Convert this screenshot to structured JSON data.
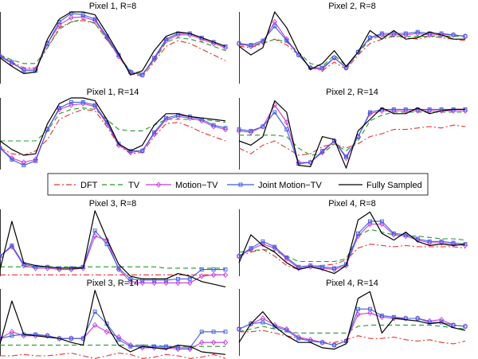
{
  "chart_data": {
    "type": "line",
    "x": [
      1,
      2,
      3,
      4,
      5,
      6,
      7,
      8,
      9,
      10,
      11,
      12,
      13,
      14,
      15,
      16,
      17,
      18,
      19,
      20
    ],
    "ylim": [
      0,
      1
    ],
    "legend": {
      "position": "center",
      "entries": [
        {
          "key": "dft",
          "label": "DFT",
          "color": "#e8332f",
          "style": "dashdot",
          "marker": "none"
        },
        {
          "key": "tv",
          "label": "TV",
          "color": "#1f9a26",
          "style": "dashed",
          "marker": "none"
        },
        {
          "key": "mtv",
          "label": "Motion−TV",
          "color": "#c63bd6",
          "style": "solid",
          "marker": "diamond"
        },
        {
          "key": "jmtv",
          "label": "Joint Motion−TV",
          "color": "#3c5be0",
          "style": "solid",
          "marker": "square"
        },
        {
          "key": "full",
          "label": "Fully Sampled",
          "color": "#000000",
          "style": "solid",
          "marker": "none"
        }
      ]
    },
    "panels": [
      {
        "id": "p1r8",
        "title": "Pixel 1, R=8",
        "series": {
          "dft": [
            0.4,
            0.3,
            0.22,
            0.22,
            0.5,
            0.78,
            0.86,
            0.88,
            0.84,
            0.62,
            0.38,
            0.14,
            0.1,
            0.3,
            0.52,
            0.6,
            0.56,
            0.48,
            0.4,
            0.32
          ],
          "tv": [
            0.4,
            0.33,
            0.28,
            0.28,
            0.5,
            0.76,
            0.86,
            0.9,
            0.84,
            0.62,
            0.38,
            0.18,
            0.14,
            0.32,
            0.58,
            0.64,
            0.62,
            0.58,
            0.52,
            0.46
          ],
          "mtv": [
            0.38,
            0.28,
            0.2,
            0.2,
            0.56,
            0.82,
            0.92,
            0.93,
            0.88,
            0.64,
            0.38,
            0.16,
            0.12,
            0.34,
            0.6,
            0.68,
            0.68,
            0.62,
            0.56,
            0.5
          ],
          "jmtv": [
            0.38,
            0.3,
            0.18,
            0.18,
            0.56,
            0.86,
            0.98,
            0.96,
            0.9,
            0.66,
            0.4,
            0.16,
            0.12,
            0.36,
            0.62,
            0.7,
            0.7,
            0.64,
            0.58,
            0.52
          ],
          "full": [
            0.36,
            0.24,
            0.14,
            0.16,
            0.62,
            0.9,
            1.0,
            1.0,
            0.96,
            0.7,
            0.42,
            0.12,
            0.18,
            0.46,
            0.66,
            0.72,
            0.7,
            0.64,
            0.58,
            0.52
          ]
        }
      },
      {
        "id": "p2r8",
        "title": "Pixel 2, R=8",
        "series": {
          "dft": [
            0.52,
            0.5,
            0.56,
            0.62,
            0.54,
            0.4,
            0.22,
            0.18,
            0.3,
            0.2,
            0.4,
            0.56,
            0.62,
            0.66,
            0.64,
            0.62,
            0.66,
            0.64,
            0.62,
            0.6
          ],
          "tv": [
            0.54,
            0.52,
            0.56,
            0.62,
            0.58,
            0.44,
            0.28,
            0.24,
            0.4,
            0.24,
            0.42,
            0.62,
            0.66,
            0.66,
            0.66,
            0.66,
            0.66,
            0.66,
            0.66,
            0.66
          ],
          "mtv": [
            0.56,
            0.52,
            0.58,
            0.86,
            0.62,
            0.4,
            0.22,
            0.2,
            0.36,
            0.22,
            0.44,
            0.64,
            0.68,
            0.68,
            0.68,
            0.7,
            0.68,
            0.68,
            0.68,
            0.66
          ],
          "jmtv": [
            0.56,
            0.54,
            0.6,
            0.8,
            0.6,
            0.4,
            0.22,
            0.22,
            0.36,
            0.22,
            0.44,
            0.64,
            0.7,
            0.7,
            0.7,
            0.72,
            0.7,
            0.7,
            0.68,
            0.66
          ],
          "full": [
            0.52,
            0.4,
            0.5,
            1.0,
            0.78,
            0.44,
            0.2,
            0.28,
            0.46,
            0.24,
            0.44,
            0.74,
            0.62,
            0.74,
            0.62,
            0.64,
            0.72,
            0.68,
            0.62,
            0.62
          ]
        }
      },
      {
        "id": "p1r14",
        "title": "Pixel 1, R=14",
        "series": {
          "dft": [
            0.3,
            0.22,
            0.2,
            0.26,
            0.42,
            0.7,
            0.78,
            0.84,
            0.82,
            0.6,
            0.34,
            0.22,
            0.24,
            0.46,
            0.64,
            0.66,
            0.6,
            0.52,
            0.46,
            0.4
          ],
          "tv": [
            0.4,
            0.4,
            0.4,
            0.4,
            0.54,
            0.78,
            0.84,
            0.86,
            0.84,
            0.7,
            0.56,
            0.54,
            0.54,
            0.62,
            0.7,
            0.7,
            0.7,
            0.7,
            0.68,
            0.66
          ],
          "mtv": [
            0.3,
            0.16,
            0.1,
            0.14,
            0.56,
            0.84,
            0.9,
            0.92,
            0.88,
            0.64,
            0.34,
            0.24,
            0.26,
            0.5,
            0.7,
            0.74,
            0.72,
            0.68,
            0.6,
            0.56
          ],
          "jmtv": [
            0.3,
            0.14,
            0.06,
            0.12,
            0.56,
            0.86,
            0.94,
            0.94,
            0.9,
            0.66,
            0.36,
            0.26,
            0.26,
            0.52,
            0.72,
            0.76,
            0.74,
            0.7,
            0.62,
            0.58
          ],
          "full": [
            0.4,
            0.28,
            0.2,
            0.22,
            0.64,
            0.92,
            1.0,
            1.0,
            0.96,
            0.7,
            0.36,
            0.26,
            0.34,
            0.62,
            0.78,
            0.78,
            0.74,
            0.72,
            0.7,
            0.68
          ]
        }
      },
      {
        "id": "p2r14",
        "title": "Pixel 2, R=14",
        "series": {
          "dft": [
            0.3,
            0.22,
            0.34,
            0.4,
            0.3,
            0.2,
            0.22,
            0.32,
            0.36,
            0.3,
            0.36,
            0.46,
            0.5,
            0.56,
            0.56,
            0.58,
            0.6,
            0.58,
            0.62,
            0.6
          ],
          "tv": [
            0.48,
            0.48,
            0.48,
            0.48,
            0.46,
            0.3,
            0.2,
            0.22,
            0.36,
            0.26,
            0.4,
            0.68,
            0.76,
            0.8,
            0.8,
            0.8,
            0.8,
            0.8,
            0.8,
            0.8
          ],
          "mtv": [
            0.54,
            0.52,
            0.6,
            0.9,
            0.66,
            0.1,
            0.1,
            0.24,
            0.4,
            0.16,
            0.46,
            0.78,
            0.82,
            0.82,
            0.82,
            0.82,
            0.82,
            0.82,
            0.82,
            0.82
          ],
          "jmtv": [
            0.56,
            0.54,
            0.6,
            0.8,
            0.56,
            0.08,
            0.1,
            0.26,
            0.4,
            0.18,
            0.46,
            0.8,
            0.84,
            0.84,
            0.84,
            0.84,
            0.84,
            0.84,
            0.84,
            0.84
          ],
          "full": [
            0.4,
            0.34,
            0.46,
            0.96,
            0.8,
            0.06,
            0.04,
            0.46,
            0.42,
            0.02,
            0.54,
            0.7,
            0.86,
            0.78,
            0.78,
            0.86,
            0.78,
            0.82,
            0.84,
            0.84
          ]
        }
      },
      {
        "id": "p3r8",
        "title": "Pixel 3, R=8",
        "series": {
          "dft": [
            0.02,
            0.02,
            0.02,
            0.02,
            0.02,
            0.02,
            0.02,
            0.02,
            0.02,
            0.02,
            0.02,
            0.02,
            0.02,
            0.02,
            0.02,
            0.02,
            0.02,
            0.02,
            0.02,
            0.02
          ],
          "tv": [
            0.14,
            0.14,
            0.14,
            0.14,
            0.14,
            0.14,
            0.14,
            0.14,
            0.14,
            0.14,
            0.14,
            0.14,
            0.14,
            0.14,
            0.12,
            0.12,
            0.12,
            0.12,
            0.12,
            0.12
          ],
          "mtv": [
            0.3,
            0.44,
            0.16,
            0.12,
            0.12,
            0.1,
            0.1,
            0.12,
            0.6,
            0.54,
            0.1,
            -0.08,
            -0.1,
            -0.1,
            -0.1,
            -0.1,
            -0.1,
            0.0,
            0.02,
            0.02
          ],
          "jmtv": [
            0.3,
            0.46,
            0.18,
            0.14,
            0.14,
            0.12,
            0.12,
            0.14,
            0.68,
            0.48,
            0.12,
            -0.04,
            -0.06,
            -0.06,
            -0.06,
            -0.04,
            -0.04,
            0.1,
            0.1,
            0.1
          ],
          "full": [
            0.1,
            0.82,
            0.2,
            0.16,
            0.14,
            0.12,
            0.12,
            0.12,
            0.98,
            0.56,
            0.18,
            0.0,
            -0.04,
            -0.04,
            -0.04,
            0.04,
            0.0,
            -0.08,
            -0.12,
            -0.16
          ]
        }
      },
      {
        "id": "p4r8",
        "title": "Pixel 4, R=8",
        "series": {
          "dft": [
            0.3,
            0.36,
            0.4,
            0.3,
            0.16,
            0.1,
            0.14,
            0.16,
            0.18,
            0.24,
            0.42,
            0.48,
            0.46,
            0.44,
            0.46,
            0.44,
            0.44,
            0.44,
            0.44,
            0.42
          ],
          "tv": [
            0.36,
            0.38,
            0.4,
            0.38,
            0.3,
            0.22,
            0.22,
            0.22,
            0.22,
            0.26,
            0.6,
            0.7,
            0.66,
            0.62,
            0.6,
            0.6,
            0.58,
            0.56,
            0.56,
            0.54
          ],
          "mtv": [
            0.3,
            0.4,
            0.48,
            0.42,
            0.26,
            0.12,
            0.14,
            0.12,
            0.1,
            0.16,
            0.6,
            0.78,
            0.78,
            0.62,
            0.6,
            0.54,
            0.5,
            0.5,
            0.48,
            0.46
          ],
          "jmtv": [
            0.3,
            0.42,
            0.52,
            0.44,
            0.28,
            0.14,
            0.16,
            0.14,
            0.12,
            0.18,
            0.64,
            0.82,
            0.82,
            0.64,
            0.62,
            0.56,
            0.52,
            0.52,
            0.5,
            0.48
          ],
          "full": [
            0.2,
            0.62,
            0.46,
            0.36,
            0.2,
            0.1,
            0.14,
            0.1,
            0.04,
            0.16,
            0.84,
            0.96,
            0.64,
            0.54,
            0.66,
            0.52,
            0.46,
            0.48,
            0.46,
            0.48
          ]
        }
      },
      {
        "id": "p3r14",
        "title": "Pixel 3, R=14",
        "series": {
          "dft": [
            0.0,
            0.0,
            0.02,
            0.0,
            0.0,
            0.02,
            0.04,
            0.0,
            -0.04,
            0.0,
            0.04,
            0.02,
            -0.04,
            -0.02,
            0.02,
            0.0,
            -0.04,
            -0.02,
            0.02,
            -0.04
          ],
          "tv": [
            0.16,
            0.16,
            0.16,
            0.16,
            0.16,
            0.16,
            0.16,
            0.16,
            0.16,
            0.16,
            0.16,
            0.16,
            0.16,
            0.16,
            0.14,
            0.14,
            0.14,
            0.14,
            0.14,
            0.14
          ],
          "mtv": [
            0.26,
            0.36,
            0.3,
            0.3,
            0.3,
            0.26,
            0.26,
            0.26,
            0.46,
            0.36,
            0.28,
            0.16,
            0.12,
            0.12,
            0.12,
            0.1,
            0.1,
            0.2,
            0.2,
            0.2
          ],
          "jmtv": [
            0.26,
            0.3,
            0.32,
            0.32,
            0.3,
            0.26,
            0.26,
            0.26,
            0.66,
            0.48,
            0.24,
            0.14,
            0.14,
            0.14,
            0.14,
            0.12,
            0.12,
            0.36,
            0.36,
            0.36
          ],
          "full": [
            0.18,
            0.82,
            0.32,
            0.3,
            0.28,
            0.26,
            0.2,
            0.16,
            0.98,
            0.46,
            0.16,
            0.06,
            0.14,
            0.12,
            0.1,
            0.16,
            0.14,
            0.06,
            0.04,
            0.02
          ]
        }
      },
      {
        "id": "p4r14",
        "title": "Pixel 4, R=14",
        "series": {
          "dft": [
            0.36,
            0.36,
            0.38,
            0.34,
            0.3,
            0.26,
            0.24,
            0.2,
            0.2,
            0.24,
            0.3,
            0.26,
            0.26,
            0.28,
            0.24,
            0.22,
            0.24,
            0.2,
            0.18,
            0.22
          ],
          "tv": [
            0.36,
            0.4,
            0.44,
            0.4,
            0.36,
            0.34,
            0.34,
            0.34,
            0.34,
            0.34,
            0.44,
            0.46,
            0.46,
            0.46,
            0.46,
            0.46,
            0.46,
            0.44,
            0.42,
            0.4
          ],
          "mtv": [
            0.4,
            0.48,
            0.56,
            0.46,
            0.4,
            0.28,
            0.24,
            0.2,
            0.16,
            0.22,
            0.62,
            0.64,
            0.58,
            0.56,
            0.56,
            0.56,
            0.52,
            0.54,
            0.46,
            0.44
          ],
          "jmtv": [
            0.4,
            0.48,
            0.5,
            0.44,
            0.38,
            0.26,
            0.22,
            0.2,
            0.16,
            0.22,
            0.7,
            0.7,
            0.6,
            0.58,
            0.56,
            0.56,
            0.5,
            0.5,
            0.46,
            0.44
          ],
          "full": [
            0.2,
            0.48,
            0.66,
            0.44,
            0.3,
            0.2,
            0.2,
            0.12,
            0.1,
            0.18,
            0.86,
            0.96,
            0.34,
            0.56,
            0.54,
            0.52,
            0.48,
            0.5,
            0.42,
            0.38
          ]
        }
      }
    ]
  }
}
